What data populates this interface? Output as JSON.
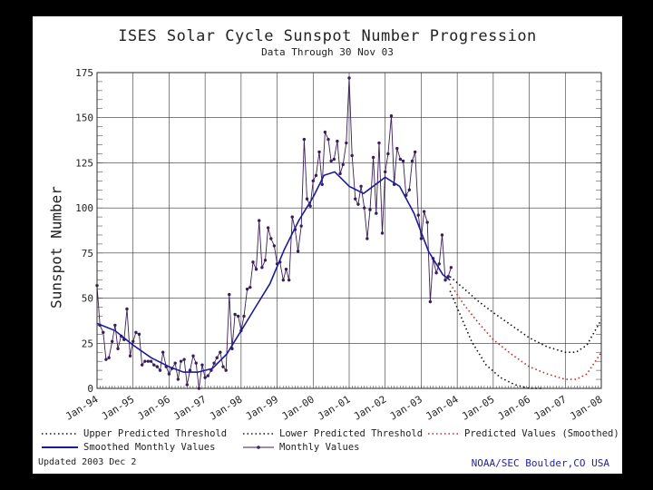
{
  "chart_data": {
    "type": "line",
    "title": "ISES Solar Cycle Sunspot Number Progression",
    "subtitle": "Data Through 30 Nov 03",
    "xlabel": "",
    "ylabel": "Sunspot Number",
    "xlim": [
      1994.0,
      2008.0
    ],
    "ylim": [
      0,
      175
    ],
    "yticks": [
      0,
      25,
      50,
      75,
      100,
      125,
      150,
      175
    ],
    "xticks": [
      {
        "year": 1994,
        "label": "Jan-94"
      },
      {
        "year": 1995,
        "label": "Jan-95"
      },
      {
        "year": 1996,
        "label": "Jan-96"
      },
      {
        "year": 1997,
        "label": "Jan-97"
      },
      {
        "year": 1998,
        "label": "Jan-98"
      },
      {
        "year": 1999,
        "label": "Jan-99"
      },
      {
        "year": 2000,
        "label": "Jan-00"
      },
      {
        "year": 2001,
        "label": "Jan-01"
      },
      {
        "year": 2002,
        "label": "Jan-02"
      },
      {
        "year": 2003,
        "label": "Jan-03"
      },
      {
        "year": 2004,
        "label": "Jan-04"
      },
      {
        "year": 2005,
        "label": "Jan-05"
      },
      {
        "year": 2006,
        "label": "Jan-06"
      },
      {
        "year": 2007,
        "label": "Jan-07"
      },
      {
        "year": 2008,
        "label": "Jan-08"
      }
    ],
    "grid": true,
    "series": [
      {
        "name": "Monthly Values",
        "color": "#3a1e5a",
        "style": "line-markers",
        "x": [
          1994.0,
          1994.08,
          1994.17,
          1994.25,
          1994.33,
          1994.42,
          1994.5,
          1994.58,
          1994.67,
          1994.75,
          1994.83,
          1994.92,
          1995.0,
          1995.08,
          1995.17,
          1995.25,
          1995.33,
          1995.42,
          1995.5,
          1995.58,
          1995.67,
          1995.75,
          1995.83,
          1995.92,
          1996.0,
          1996.08,
          1996.17,
          1996.25,
          1996.33,
          1996.42,
          1996.5,
          1996.58,
          1996.67,
          1996.75,
          1996.83,
          1996.92,
          1997.0,
          1997.08,
          1997.17,
          1997.25,
          1997.33,
          1997.42,
          1997.5,
          1997.58,
          1997.67,
          1997.75,
          1997.83,
          1997.92,
          1998.0,
          1998.08,
          1998.17,
          1998.25,
          1998.33,
          1998.42,
          1998.5,
          1998.58,
          1998.67,
          1998.75,
          1998.83,
          1998.92,
          1999.0,
          1999.08,
          1999.17,
          1999.25,
          1999.33,
          1999.42,
          1999.5,
          1999.58,
          1999.67,
          1999.75,
          1999.83,
          1999.92,
          2000.0,
          2000.08,
          2000.17,
          2000.25,
          2000.33,
          2000.42,
          2000.5,
          2000.58,
          2000.67,
          2000.75,
          2000.83,
          2000.92,
          2001.0,
          2001.08,
          2001.17,
          2001.25,
          2001.33,
          2001.42,
          2001.5,
          2001.58,
          2001.67,
          2001.75,
          2001.83,
          2001.92,
          2002.0,
          2002.08,
          2002.17,
          2002.25,
          2002.33,
          2002.42,
          2002.5,
          2002.58,
          2002.67,
          2002.75,
          2002.83,
          2002.92,
          2003.0,
          2003.08,
          2003.17,
          2003.25,
          2003.33,
          2003.42,
          2003.5,
          2003.58,
          2003.67,
          2003.75,
          2003.83
        ],
        "values": [
          57,
          35,
          31,
          16,
          17,
          26,
          35,
          22,
          29,
          27,
          44,
          18,
          26,
          31,
          30,
          13,
          15,
          15,
          15,
          13,
          12,
          10,
          20,
          12,
          8,
          11,
          14,
          5,
          15,
          16,
          2,
          10,
          18,
          14,
          0,
          13,
          6,
          7,
          10,
          14,
          17,
          20,
          12,
          10,
          52,
          22,
          41,
          40,
          32,
          40,
          55,
          56,
          70,
          66,
          93,
          67,
          71,
          89,
          83,
          79,
          69,
          70,
          60,
          66,
          60,
          95,
          88,
          76,
          90,
          138,
          105,
          101,
          115,
          118,
          131,
          113,
          142,
          138,
          126,
          127,
          137,
          119,
          124,
          136,
          172,
          129,
          105,
          102,
          112,
          100,
          83,
          99,
          128,
          97,
          136,
          86,
          120,
          130,
          151,
          113,
          133,
          127,
          126,
          107,
          110,
          126,
          131,
          96,
          83,
          98,
          92,
          48,
          72,
          64,
          69,
          85,
          60,
          62,
          67
        ]
      },
      {
        "name": "Smoothed Monthly Values",
        "color": "#1c1c9a",
        "style": "line",
        "x": [
          1994.0,
          1994.5,
          1995.0,
          1995.5,
          1996.0,
          1996.4,
          1996.8,
          1997.2,
          1997.6,
          1998.0,
          1998.4,
          1998.8,
          1999.2,
          1999.6,
          2000.0,
          2000.3,
          2000.6,
          2001.0,
          2001.4,
          2001.8,
          2002.0,
          2002.4,
          2002.8,
          2003.2,
          2003.6,
          2003.8
        ],
        "values": [
          36,
          32,
          24,
          17,
          12,
          9,
          9,
          11,
          19,
          32,
          45,
          58,
          77,
          93,
          106,
          118,
          120,
          112,
          108,
          114,
          117,
          112,
          97,
          76,
          63,
          60
        ]
      },
      {
        "name": "Upper Predicted Threshold",
        "color": "#111111",
        "style": "dotted",
        "x": [
          2003.8,
          2004.2,
          2004.6,
          2005.0,
          2005.5,
          2006.0,
          2006.5,
          2007.0,
          2007.3,
          2007.6,
          2008.0
        ],
        "values": [
          62,
          55,
          48,
          42,
          35,
          28,
          23,
          20,
          20,
          24,
          38
        ]
      },
      {
        "name": "Predicted Values (Smoothed)",
        "color": "#c0282a",
        "style": "dotted",
        "x": [
          2003.8,
          2004.2,
          2004.6,
          2005.0,
          2005.5,
          2006.0,
          2006.5,
          2007.0,
          2007.3,
          2007.6,
          2008.0
        ],
        "values": [
          58,
          46,
          36,
          27,
          19,
          12,
          8,
          5,
          5,
          8,
          20
        ]
      },
      {
        "name": "Lower Predicted Threshold",
        "color": "#111111",
        "style": "dotted",
        "x": [
          2003.8,
          2004.1,
          2004.4,
          2004.8,
          2005.2,
          2005.6,
          2006.0,
          2006.4
        ],
        "values": [
          54,
          40,
          26,
          13,
          6,
          2,
          0,
          0
        ]
      }
    ]
  },
  "legend": {
    "upper": "Upper Predicted Threshold",
    "lower": "Lower Predicted Threshold",
    "predicted": "Predicted Values (Smoothed)",
    "smoothed": "Smoothed Monthly Values",
    "monthly": "Monthly Values"
  },
  "footer": {
    "updated": "Updated 2003 Dec  2",
    "credit": "NOAA/SEC Boulder,CO USA"
  }
}
